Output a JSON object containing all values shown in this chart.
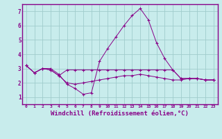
{
  "background_color": "#c8ecec",
  "plot_bg_color": "#c8ecec",
  "grid_color": "#a0cccc",
  "line_color": "#880088",
  "border_color": "#880088",
  "xlim": [
    -0.5,
    23.5
  ],
  "ylim": [
    0.5,
    7.5
  ],
  "xlabel": "Windchill (Refroidissement éolien,°C)",
  "xlabel_fontsize": 6.5,
  "xtick_labels": [
    "0",
    "1",
    "2",
    "3",
    "4",
    "5",
    "6",
    "7",
    "8",
    "9",
    "10",
    "11",
    "12",
    "13",
    "14",
    "15",
    "16",
    "17",
    "18",
    "19",
    "20",
    "21",
    "22",
    "23"
  ],
  "ytick_labels": [
    "1",
    "2",
    "3",
    "4",
    "5",
    "6",
    "7"
  ],
  "ytick_vals": [
    1,
    2,
    3,
    4,
    5,
    6,
    7
  ],
  "series": [
    [
      3.2,
      2.7,
      3.0,
      3.0,
      2.6,
      1.9,
      1.6,
      1.2,
      1.3,
      3.5,
      4.4,
      5.2,
      6.0,
      6.7,
      7.2,
      6.4,
      4.8,
      3.7,
      2.9,
      2.3,
      2.3,
      2.3,
      2.2,
      2.2
    ],
    [
      3.2,
      2.7,
      3.0,
      2.9,
      2.5,
      2.9,
      2.9,
      2.9,
      2.9,
      2.9,
      2.9,
      2.9,
      2.9,
      2.9,
      2.9,
      2.9,
      2.9,
      2.9,
      2.9,
      2.3,
      2.3,
      2.3,
      2.2,
      2.2
    ],
    [
      3.2,
      2.7,
      3.0,
      2.9,
      2.5,
      2.0,
      1.9,
      2.0,
      2.1,
      2.2,
      2.3,
      2.4,
      2.5,
      2.5,
      2.6,
      2.5,
      2.4,
      2.3,
      2.2,
      2.2,
      2.3,
      2.3,
      2.2,
      2.2
    ]
  ]
}
